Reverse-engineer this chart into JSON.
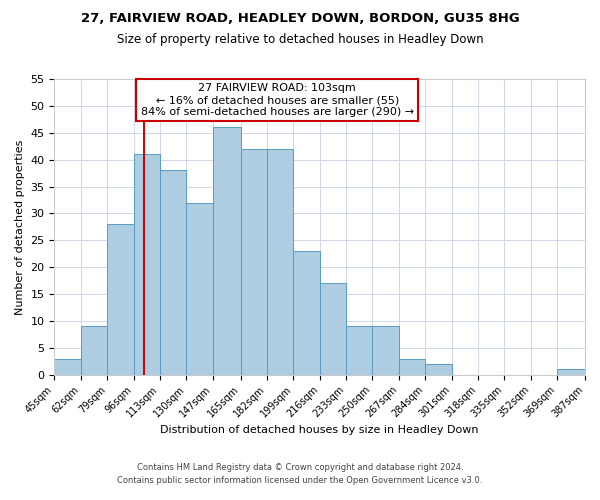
{
  "title": "27, FAIRVIEW ROAD, HEADLEY DOWN, BORDON, GU35 8HG",
  "subtitle": "Size of property relative to detached houses in Headley Down",
  "xlabel": "Distribution of detached houses by size in Headley Down",
  "ylabel": "Number of detached properties",
  "bar_edges": [
    45,
    62,
    79,
    96,
    113,
    130,
    147,
    165,
    182,
    199,
    216,
    233,
    250,
    267,
    284,
    301,
    318,
    335,
    352,
    369,
    387
  ],
  "bar_heights": [
    3,
    9,
    28,
    41,
    38,
    32,
    46,
    42,
    42,
    23,
    17,
    9,
    9,
    3,
    2,
    0,
    0,
    0,
    0,
    1
  ],
  "bar_color": "#aecde1",
  "bar_edge_color": "#5a9cc5",
  "vline_x": 103,
  "vline_color": "#cc0000",
  "ylim": [
    0,
    55
  ],
  "yticks": [
    0,
    5,
    10,
    15,
    20,
    25,
    30,
    35,
    40,
    45,
    50,
    55
  ],
  "annotation_title": "27 FAIRVIEW ROAD: 103sqm",
  "annotation_line1": "← 16% of detached houses are smaller (55)",
  "annotation_line2": "84% of semi-detached houses are larger (290) →",
  "annotation_box_color": "#ffffff",
  "annotation_box_edge_color": "#cc0000",
  "footer1": "Contains HM Land Registry data © Crown copyright and database right 2024.",
  "footer2": "Contains public sector information licensed under the Open Government Licence v3.0.",
  "tick_labels": [
    "45sqm",
    "62sqm",
    "79sqm",
    "96sqm",
    "113sqm",
    "130sqm",
    "147sqm",
    "165sqm",
    "182sqm",
    "199sqm",
    "216sqm",
    "233sqm",
    "250sqm",
    "267sqm",
    "284sqm",
    "301sqm",
    "318sqm",
    "335sqm",
    "352sqm",
    "369sqm",
    "387sqm"
  ],
  "background_color": "#ffffff",
  "grid_color": "#d0d8e8",
  "title_fontsize": 9.5,
  "subtitle_fontsize": 8.5,
  "axis_label_fontsize": 8,
  "tick_fontsize": 7,
  "annotation_fontsize": 8,
  "footer_fontsize": 6
}
